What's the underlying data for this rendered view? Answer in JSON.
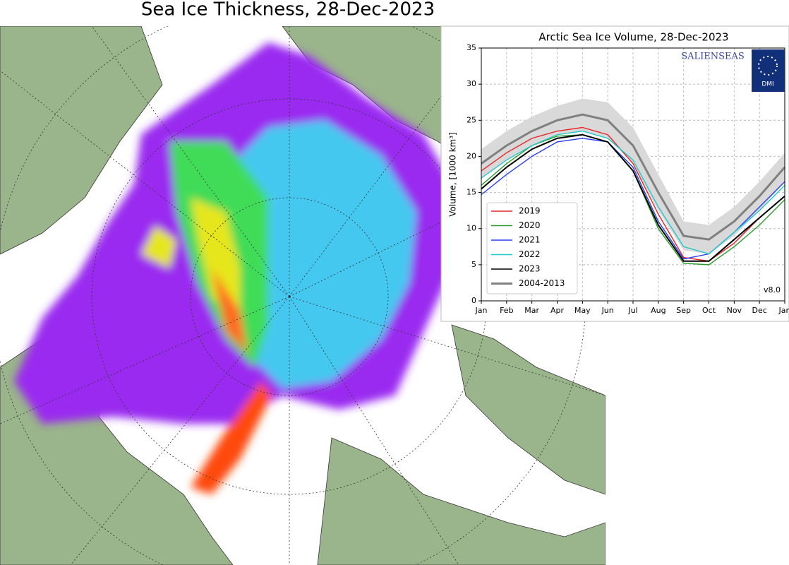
{
  "map": {
    "title": "Sea Ice Thickness, 28-Dec-2023"
  },
  "chart_data": {
    "type": "line",
    "title": "Arctic Sea Ice Volume, 28-Dec-2023",
    "y_label": "Volume, [1000 km³]",
    "categories": [
      "Jan",
      "Feb",
      "Mar",
      "Apr",
      "May",
      "Jun",
      "Jul",
      "Aug",
      "Sep",
      "Oct",
      "Nov",
      "Dec",
      "Jan"
    ],
    "ylim": [
      0,
      35
    ],
    "yticks": [
      0,
      5,
      10,
      15,
      20,
      25,
      30,
      35
    ],
    "grid": true,
    "legend": "lower-left",
    "series": [
      {
        "name": "2019",
        "color": "#e8262a",
        "values": [
          18,
          20.5,
          22.5,
          23.5,
          24,
          23,
          19,
          12,
          6,
          5.5,
          8,
          11.5,
          14.5
        ]
      },
      {
        "name": "2020",
        "color": "#2a9a2a",
        "values": [
          16,
          19,
          21.5,
          22.8,
          23,
          22,
          18,
          10,
          5.2,
          5,
          7.5,
          10.5,
          14
        ]
      },
      {
        "name": "2021",
        "color": "#2a3ef0",
        "values": [
          14.7,
          17.5,
          20,
          22,
          22.5,
          22,
          18.5,
          11,
          5.8,
          6.5,
          9.5,
          13,
          16.5
        ]
      },
      {
        "name": "2022",
        "color": "#22c8c8",
        "values": [
          17,
          19.5,
          21.5,
          23,
          23.5,
          22.5,
          19.5,
          13,
          7.5,
          6.5,
          9.5,
          12.5,
          16
        ]
      },
      {
        "name": "2023",
        "color": "#000000",
        "values": [
          15.5,
          18.5,
          21,
          22.5,
          23,
          22,
          18,
          10.5,
          5.5,
          5.5,
          8.5,
          11.5,
          14.5
        ]
      },
      {
        "name": "2004-2013",
        "color": "#808080",
        "values": [
          19,
          21.5,
          23.5,
          25,
          25.8,
          25,
          21.5,
          15,
          9,
          8.5,
          11,
          14.5,
          18.5
        ]
      }
    ],
    "band": {
      "color": "#d9d9d9",
      "lower": [
        17,
        19.5,
        21.5,
        23,
        23.5,
        22.5,
        19,
        12.5,
        7,
        6.5,
        9,
        12.5,
        16.5
      ],
      "upper": [
        21,
        23.5,
        25.5,
        27,
        28,
        27.5,
        24,
        17.5,
        11,
        10.5,
        13,
        16.5,
        20.5
      ]
    },
    "logo_text": "SALIENSEAS",
    "logo_badge": "DMI",
    "version": "v8.0"
  }
}
